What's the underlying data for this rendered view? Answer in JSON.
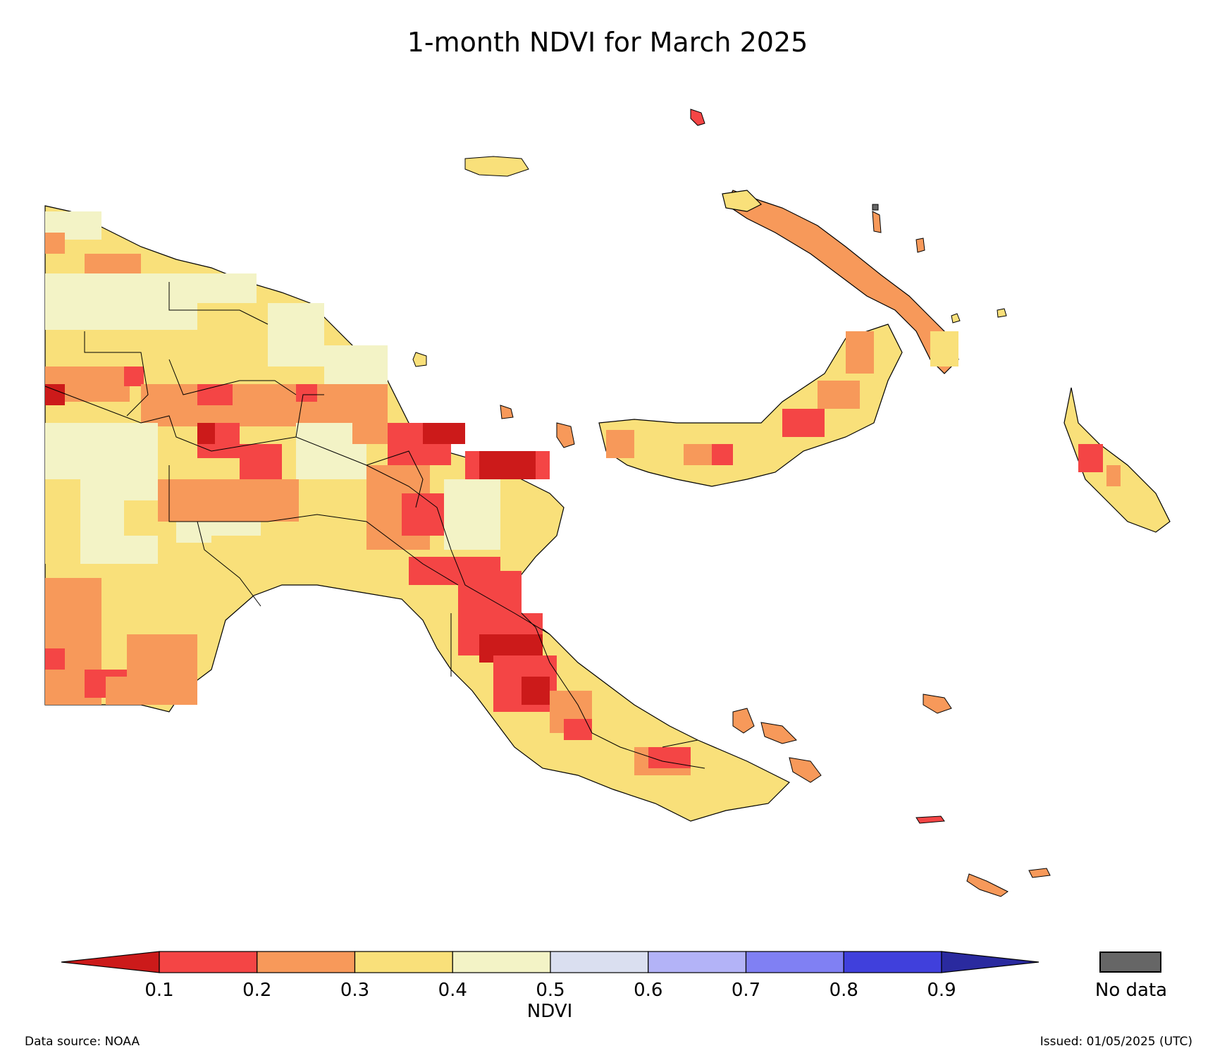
{
  "title": "1-month NDVI for March 2025",
  "colorbar": {
    "label": "NDVI",
    "ticks": [
      "0.1",
      "0.2",
      "0.3",
      "0.4",
      "0.5",
      "0.6",
      "0.7",
      "0.8",
      "0.9"
    ],
    "colors": [
      "#cc1a1a",
      "#f44545",
      "#f7995a",
      "#f9e07a",
      "#f3f3c6",
      "#dadff0",
      "#b3b3f7",
      "#8080f3",
      "#4040dc",
      "#2a2a9f"
    ],
    "no_data_label": "No data",
    "no_data_color": "#666666"
  },
  "footer": {
    "source": "Data source: NOAA",
    "issued": "Issued: 01/05/2025 (UTC)"
  }
}
